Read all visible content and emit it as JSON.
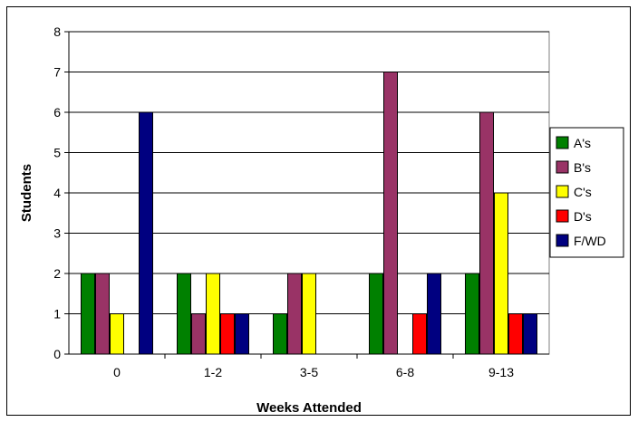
{
  "chart_data": {
    "type": "bar",
    "title": "",
    "xlabel": "Weeks Attended",
    "ylabel": "Students",
    "ylim": [
      0,
      8
    ],
    "yticks": [
      "0",
      "1",
      "2",
      "3",
      "4",
      "5",
      "6",
      "7",
      "8"
    ],
    "categories": [
      "0",
      "1-2",
      "3-5",
      "6-8",
      "9-13"
    ],
    "grid": "horizontal",
    "legend_position": "right",
    "series": [
      {
        "name": "A's",
        "color": "#008000",
        "values": [
          2,
          2,
          1,
          2,
          2
        ]
      },
      {
        "name": "B's",
        "color": "#993366",
        "values": [
          2,
          1,
          2,
          7,
          6
        ]
      },
      {
        "name": "C's",
        "color": "#ffff00",
        "values": [
          1,
          2,
          2,
          0,
          4
        ]
      },
      {
        "name": "D's",
        "color": "#ff0000",
        "values": [
          0,
          1,
          0,
          1,
          1
        ]
      },
      {
        "name": "F/WD",
        "color": "#000080",
        "values": [
          6,
          1,
          0,
          2,
          1
        ]
      }
    ],
    "colors": {
      "plot_background": "#ffffff",
      "grid": "#000000",
      "bar_outline": "#000000"
    }
  }
}
